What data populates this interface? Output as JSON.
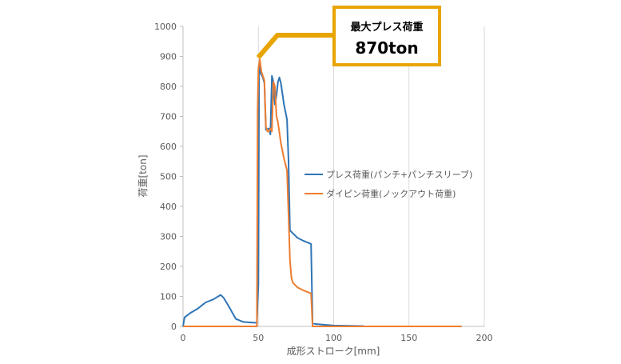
{
  "chart_data": {
    "type": "line",
    "xlabel": "成形ストローク[mm]",
    "ylabel": "荷重[ton]",
    "xlim": [
      0,
      200
    ],
    "ylim": [
      0,
      1000
    ],
    "x_ticks": [
      "0",
      "50",
      "100",
      "150",
      "200"
    ],
    "y_ticks": [
      "0",
      "100",
      "200",
      "300",
      "400",
      "500",
      "600",
      "700",
      "800",
      "900",
      "1000"
    ],
    "grid": "vertical",
    "legend_position": "right",
    "series": [
      {
        "name": "プレス荷重(パンチ+パンチスリーブ)",
        "color": "#2E75B6",
        "points": [
          [
            0,
            0
          ],
          [
            1,
            30
          ],
          [
            5,
            45
          ],
          [
            10,
            60
          ],
          [
            15,
            80
          ],
          [
            20,
            90
          ],
          [
            25,
            105
          ],
          [
            27,
            95
          ],
          [
            30,
            70
          ],
          [
            35,
            25
          ],
          [
            40,
            15
          ],
          [
            45,
            13
          ],
          [
            49,
            12
          ],
          [
            49.5,
            80
          ],
          [
            50,
            140
          ],
          [
            50.5,
            870
          ],
          [
            51,
            850
          ],
          [
            53,
            830
          ],
          [
            54,
            812
          ],
          [
            55,
            655
          ],
          [
            57,
            660
          ],
          [
            58,
            640
          ],
          [
            59,
            835
          ],
          [
            60,
            815
          ],
          [
            61,
            740
          ],
          [
            62,
            770
          ],
          [
            63,
            815
          ],
          [
            64,
            830
          ],
          [
            65,
            810
          ],
          [
            67,
            740
          ],
          [
            69,
            690
          ],
          [
            70,
            560
          ],
          [
            71,
            320
          ],
          [
            73,
            310
          ],
          [
            76,
            295
          ],
          [
            80,
            285
          ],
          [
            85,
            275
          ],
          [
            86,
            10
          ],
          [
            88,
            8
          ],
          [
            95,
            5
          ],
          [
            100,
            3
          ],
          [
            110,
            2
          ],
          [
            120,
            1
          ]
        ]
      },
      {
        "name": "ダイピン荷重(ノックアウト荷重)",
        "color": "#ED7D31",
        "points": [
          [
            0,
            0
          ],
          [
            49,
            0
          ],
          [
            49.5,
            720
          ],
          [
            50,
            860
          ],
          [
            51,
            890
          ],
          [
            52,
            850
          ],
          [
            54,
            820
          ],
          [
            55,
            665
          ],
          [
            56,
            650
          ],
          [
            57,
            650
          ],
          [
            58,
            660
          ],
          [
            59,
            650
          ],
          [
            60,
            815
          ],
          [
            61,
            800
          ],
          [
            62,
            700
          ],
          [
            63,
            680
          ],
          [
            65,
            610
          ],
          [
            67,
            560
          ],
          [
            69,
            520
          ],
          [
            70,
            380
          ],
          [
            71,
            220
          ],
          [
            72,
            160
          ],
          [
            73,
            145
          ],
          [
            76,
            130
          ],
          [
            80,
            120
          ],
          [
            85,
            110
          ],
          [
            86,
            0
          ],
          [
            110,
            0
          ],
          [
            185,
            0
          ]
        ]
      }
    ],
    "annotation": {
      "title": "最大プレス荷重",
      "value": "870ton",
      "color": "#E8A400",
      "point": [
        50.5,
        890
      ]
    }
  }
}
